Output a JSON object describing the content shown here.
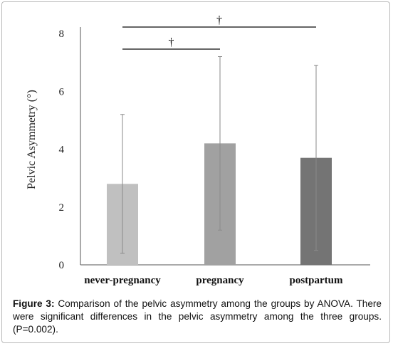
{
  "chart_data": {
    "type": "bar",
    "categories": [
      "never-pregnancy",
      "pregnancy",
      "postpartum"
    ],
    "values": [
      2.8,
      4.2,
      3.7
    ],
    "error_low": [
      0.4,
      1.2,
      0.5
    ],
    "error_high": [
      5.2,
      7.2,
      6.9
    ],
    "bar_colors": [
      "#c0c0c0",
      "#a1a1a1",
      "#747474"
    ],
    "ylabel": "Pelvic Asymmetry (°)",
    "ylim": [
      0,
      8
    ],
    "yticks": [
      "0",
      "2",
      "4",
      "6",
      "8"
    ],
    "grid": false,
    "significance": [
      {
        "from": "never-pregnancy",
        "to": "pregnancy",
        "mark": "†"
      },
      {
        "from": "never-pregnancy",
        "to": "postpartum",
        "mark": "†"
      }
    ]
  },
  "caption": {
    "label": "Figure 3:",
    "text": " Comparison of the pelvic asymmetry among the groups by ANOVA. There were significant differences in the pelvic asymmetry among the three groups. (P=0.002)."
  }
}
